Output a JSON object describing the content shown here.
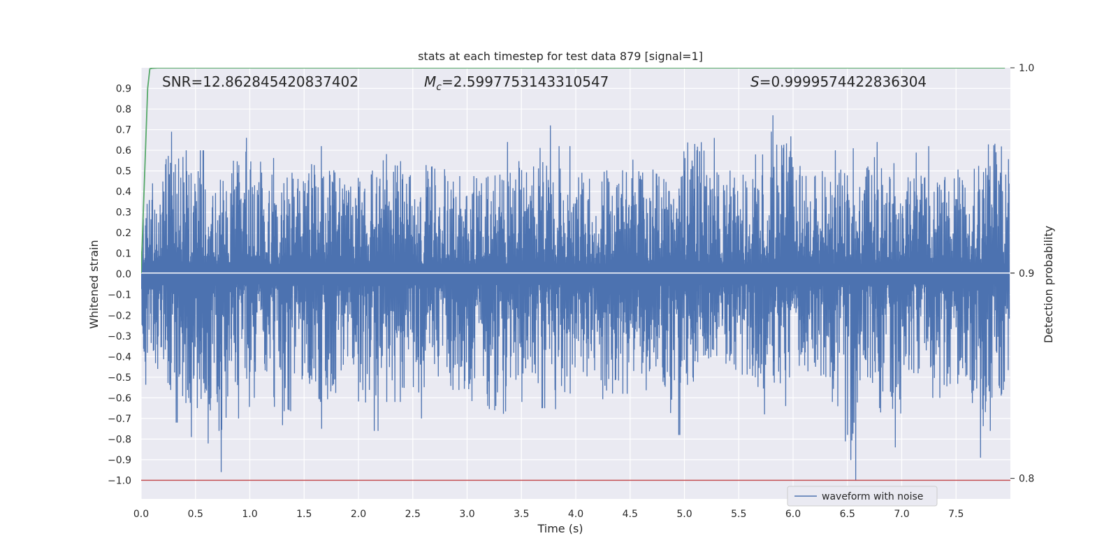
{
  "chart_data": {
    "type": "line",
    "title": "stats at each timestep for test data 879 [signal=1]",
    "xlabel": "Time (s)",
    "ylabel": "Whitened strain",
    "y2label": "Detection probability",
    "xlim": [
      0.0,
      8.0
    ],
    "ylim": [
      -1.09,
      1.0
    ],
    "y2lim": [
      0.79,
      1.0
    ],
    "x_ticks": [
      0.0,
      0.5,
      1.0,
      1.5,
      2.0,
      2.5,
      3.0,
      3.5,
      4.0,
      4.5,
      5.0,
      5.5,
      6.0,
      6.5,
      7.0,
      7.5
    ],
    "x_tick_labels": [
      "0.0",
      "0.5",
      "1.0",
      "1.5",
      "2.0",
      "2.5",
      "3.0",
      "3.5",
      "4.0",
      "4.5",
      "5.0",
      "5.5",
      "6.0",
      "6.5",
      "7.0",
      "7.5"
    ],
    "y_ticks": [
      0.9,
      0.8,
      0.7,
      0.6,
      0.5,
      0.4,
      0.3,
      0.2,
      0.1,
      0.0,
      -0.1,
      -0.2,
      -0.3,
      -0.4,
      -0.5,
      -0.6,
      -0.7,
      -0.8,
      -0.9,
      -1.0
    ],
    "y_tick_labels": [
      "0.9",
      "0.8",
      "0.7",
      "0.6",
      "0.5",
      "0.4",
      "0.3",
      "0.2",
      "0.1",
      "0.0",
      "−0.1",
      "−0.2",
      "−0.3",
      "−0.4",
      "−0.5",
      "−0.6",
      "−0.7",
      "−0.8",
      "−0.9",
      "−1.0"
    ],
    "y2_ticks": [
      1.0,
      0.9,
      0.8
    ],
    "y2_tick_labels": [
      "1.0",
      "0.9",
      "0.8"
    ],
    "grid": true,
    "legend_position": "lower-right",
    "annotations": {
      "snr": "SNR=12.862845420837402",
      "mc_symbol": "M",
      "mc_subscript": "c",
      "mc_value": "=2.5997753143310547",
      "s_symbol": "S",
      "s_value": "=0.9999574422836304"
    },
    "series": [
      {
        "name": "waveform with noise",
        "axis": "left",
        "color": "#4c72b0",
        "time_range": [
          0.0,
          7.99
        ],
        "envelope_upper": [
          0.44,
          0.69,
          0.6,
          0.55,
          0.84,
          0.68,
          0.6,
          0.65,
          0.62,
          0.58,
          0.63,
          0.72,
          0.6,
          0.65,
          0.62,
          0.58,
          0.64,
          0.66,
          0.75,
          0.62,
          0.6,
          0.63,
          0.61,
          0.65,
          0.59,
          0.79,
          0.66,
          0.62,
          0.58,
          0.88,
          0.63,
          0.6,
          0.61,
          0.64,
          0.66,
          0.59,
          0.62,
          0.65,
          0.63,
          0.76
        ],
        "envelope_lower": [
          -0.6,
          -0.72,
          -0.79,
          -0.96,
          -0.7,
          -0.6,
          -0.81,
          -0.66,
          -0.75,
          -0.58,
          -0.76,
          -0.62,
          -0.7,
          -0.6,
          -0.68,
          -0.77,
          -0.84,
          -0.62,
          -0.65,
          -0.7,
          -0.6,
          -0.73,
          -0.58,
          -0.62,
          -0.78,
          -0.66,
          -0.6,
          -0.59,
          -0.68,
          -0.64,
          -0.6,
          -0.62,
          -1.0,
          -0.65,
          -0.84,
          -0.62,
          -0.6,
          -0.66,
          -0.89,
          -0.76
        ]
      },
      {
        "name": "",
        "axis": "right",
        "color": "#55a868",
        "x": [
          0.0,
          0.02,
          0.04,
          0.06,
          0.08,
          0.1,
          0.15,
          0.3,
          1.0,
          2.0,
          3.0,
          4.0,
          5.0,
          6.0,
          7.0,
          7.95
        ],
        "values": [
          0.9,
          0.93,
          0.96,
          0.99,
          0.9995,
          0.9998,
          0.99995,
          0.99996,
          0.99996,
          0.99996,
          0.99996,
          0.99996,
          0.99996,
          0.99996,
          0.99996,
          0.99996
        ]
      }
    ],
    "reference_lines": [
      {
        "axis": "left",
        "y": -1.0,
        "color": "#c44e52"
      }
    ]
  }
}
